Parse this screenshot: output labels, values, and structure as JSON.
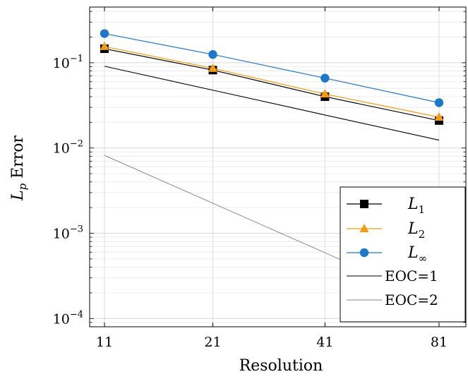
{
  "chart_data": {
    "type": "line",
    "title": "",
    "xlabel": "Resolution",
    "ylabel_main": "L",
    "ylabel_sub": "p",
    "ylabel_rest": " Error",
    "x_scale": "log",
    "y_scale": "log",
    "x": [
      11,
      21,
      41,
      81
    ],
    "x_tick_labels": [
      "11",
      "21",
      "41",
      "81"
    ],
    "y_ticks": [
      {
        "value": 0.1,
        "base": "10",
        "exp": "−1"
      },
      {
        "value": 0.01,
        "base": "10",
        "exp": "−2"
      },
      {
        "value": 0.001,
        "base": "10",
        "exp": "−3"
      },
      {
        "value": 0.0001,
        "base": "10",
        "exp": "−4"
      }
    ],
    "ylim": [
      8e-05,
      0.45
    ],
    "grid": true,
    "legend_position": "bottom-right",
    "series": [
      {
        "name": "L",
        "sub": "1",
        "values": [
          0.146,
          0.082,
          0.04,
          0.021
        ],
        "color": "#000000",
        "marker": "square",
        "width": 1.2
      },
      {
        "name": "L",
        "sub": "2",
        "values": [
          0.155,
          0.086,
          0.043,
          0.023
        ],
        "color": "#f39c12",
        "marker": "triangle",
        "width": 1.2
      },
      {
        "name": "L",
        "sub": "∞",
        "values": [
          0.22,
          0.125,
          0.066,
          0.034
        ],
        "color": "#1f77c9",
        "marker": "circle",
        "width": 1.2
      },
      {
        "name": "EOC=1",
        "sub": "",
        "values": [
          0.091,
          0.0477,
          0.0244,
          0.01236
        ],
        "color": "#000000",
        "marker": "none",
        "width": 1.1
      },
      {
        "name": "EOC=2",
        "sub": "",
        "values": [
          0.0082,
          0.00225,
          0.000591,
          0.000151
        ],
        "color": "#8a8a8a",
        "marker": "none",
        "width": 1.0
      }
    ]
  }
}
